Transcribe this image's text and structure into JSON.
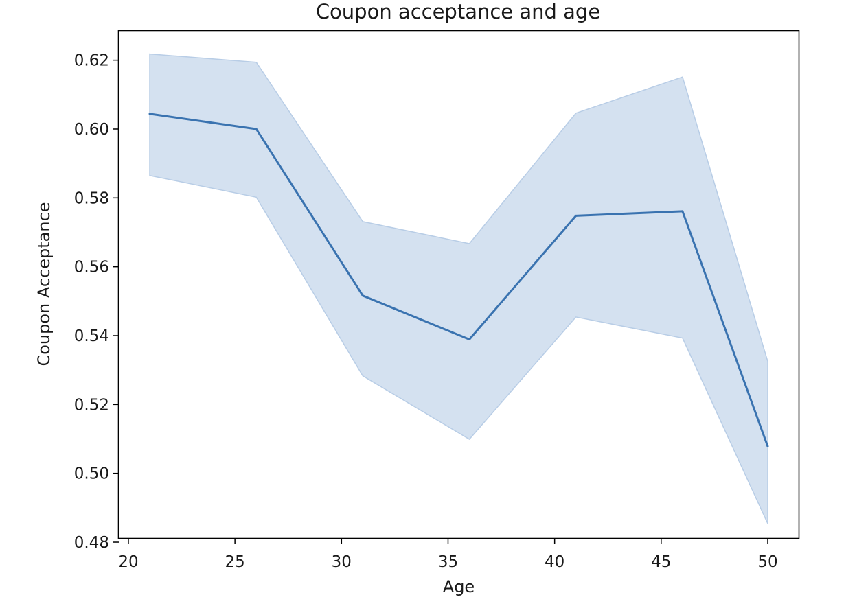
{
  "chart_data": {
    "type": "line",
    "title": "Coupon acceptance and age",
    "xlabel": "Age",
    "ylabel": "Coupon Acceptance",
    "xlim": [
      19.55,
      51.45
    ],
    "ylim": [
      0.4812,
      0.6285
    ],
    "xticks": [
      20,
      25,
      30,
      35,
      40,
      45,
      50
    ],
    "yticks": [
      0.48,
      0.5,
      0.52,
      0.54,
      0.56,
      0.58,
      0.6,
      0.62
    ],
    "ytick_labels": [
      "0.48",
      "0.50",
      "0.52",
      "0.54",
      "0.56",
      "0.58",
      "0.60",
      "0.62"
    ],
    "grid": false,
    "legend": "none",
    "series": [
      {
        "x": [
          21,
          26,
          31,
          36,
          41,
          46,
          50
        ],
        "y": [
          0.6044,
          0.6,
          0.5516,
          0.5389,
          0.5748,
          0.5761,
          0.5078
        ],
        "ci_lower": [
          0.5865,
          0.5802,
          0.5283,
          0.5099,
          0.5454,
          0.5393,
          0.4854
        ],
        "ci_upper": [
          0.6218,
          0.6194,
          0.5731,
          0.5667,
          0.6046,
          0.6151,
          0.5325
        ],
        "color": "#3a73b0",
        "band_color": "#b8cde6"
      }
    ]
  }
}
